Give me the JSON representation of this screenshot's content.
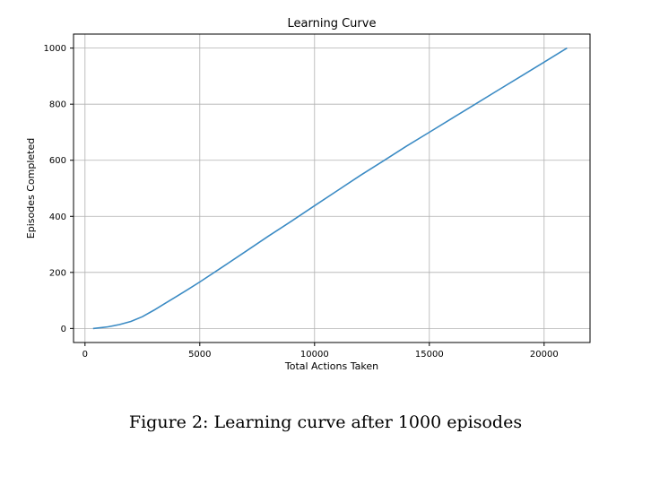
{
  "chart_data": {
    "type": "line",
    "title": "Learning Curve",
    "xlabel": "Total Actions Taken",
    "ylabel": "Episodes Completed",
    "xlim": [
      -500,
      22000
    ],
    "ylim": [
      -50,
      1050
    ],
    "xticks": [
      0,
      5000,
      10000,
      15000,
      20000
    ],
    "yticks": [
      0,
      200,
      400,
      600,
      800,
      1000
    ],
    "grid": true,
    "series": [
      {
        "color": "#3b8bc4",
        "x": [
          350,
          700,
          1000,
          1500,
          2000,
          2500,
          3000,
          3500,
          4000,
          4500,
          5000,
          6000,
          7000,
          8000,
          9000,
          10000,
          11000,
          12000,
          13000,
          14000,
          15000,
          16000,
          17000,
          18000,
          19000,
          20000,
          21000
        ],
        "y": [
          0,
          3,
          6,
          14,
          25,
          42,
          65,
          90,
          115,
          140,
          166,
          220,
          275,
          330,
          383,
          438,
          492,
          546,
          598,
          650,
          700,
          750,
          800,
          850,
          900,
          950,
          1000
        ]
      }
    ]
  },
  "caption": "Figure 2: Learning curve after 1000 episodes"
}
